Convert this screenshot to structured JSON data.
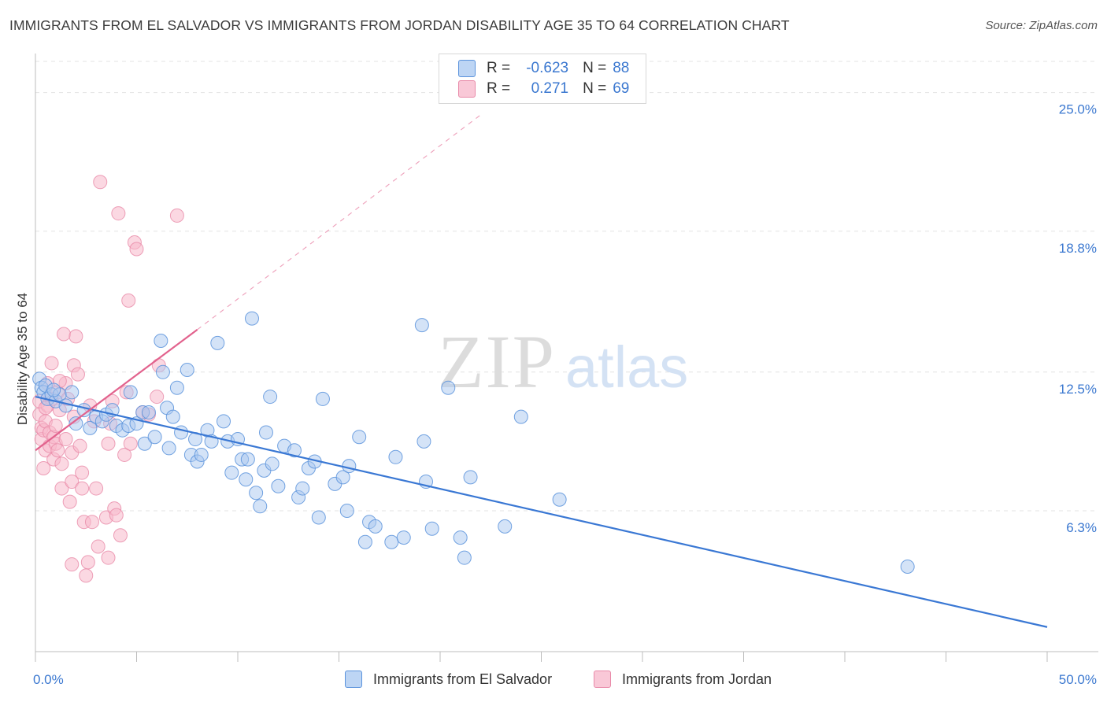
{
  "title": "IMMIGRANTS FROM EL SALVADOR VS IMMIGRANTS FROM JORDAN DISABILITY AGE 35 TO 64 CORRELATION CHART",
  "source": "Source: ZipAtlas.com",
  "watermark": {
    "zip": "ZIP",
    "atlas": "atlas"
  },
  "legend": {
    "row1": {
      "r_label": "R =",
      "r_value": "-0.623",
      "n_label": "N =",
      "n_value": "88"
    },
    "row2": {
      "r_label": "R =",
      "r_value": "0.271",
      "n_label": "N =",
      "n_value": "69"
    }
  },
  "colors": {
    "blue_fill": "#a9c8f0",
    "blue_stroke": "#5b93dc",
    "blue_line": "#3a78d4",
    "pink_fill": "#f7b8cb",
    "pink_stroke": "#e889a8",
    "pink_line": "#e2628d",
    "grid": "#e3e3e3",
    "tick_label": "#3b78d0"
  },
  "chart_data": {
    "type": "scatter",
    "title": "IMMIGRANTS FROM EL SALVADOR VS IMMIGRANTS FROM JORDAN DISABILITY AGE 35 TO 64 CORRELATION CHART",
    "xlabel": "",
    "ylabel": "Disability Age 35 to 64",
    "xlim": [
      0,
      50
    ],
    "ylim": [
      0,
      26.5
    ],
    "x_tick_labels": [
      "0.0%",
      "50.0%"
    ],
    "y_ticks": [
      6.3,
      12.5,
      18.8,
      25.0
    ],
    "y_tick_labels": [
      "6.3%",
      "12.5%",
      "18.8%",
      "25.0%"
    ],
    "grid": true,
    "legend_position": "top-center",
    "series": [
      {
        "name": "Immigrants from El Salvador",
        "r": -0.623,
        "n": 88,
        "trend": {
          "x": [
            0,
            50
          ],
          "y": [
            11.4,
            1.1
          ],
          "dashed_extension": false
        },
        "points": [
          [
            0.2,
            12.2
          ],
          [
            0.3,
            11.8
          ],
          [
            0.4,
            11.6
          ],
          [
            0.5,
            11.9
          ],
          [
            0.6,
            11.3
          ],
          [
            0.8,
            11.5
          ],
          [
            1.0,
            11.2
          ],
          [
            1.2,
            11.5
          ],
          [
            1.5,
            11.0
          ],
          [
            1.8,
            11.6
          ],
          [
            2.0,
            10.2
          ],
          [
            2.4,
            10.8
          ],
          [
            2.7,
            10.0
          ],
          [
            3.0,
            10.5
          ],
          [
            3.3,
            10.3
          ],
          [
            3.5,
            10.6
          ],
          [
            3.8,
            10.8
          ],
          [
            4.0,
            10.1
          ],
          [
            4.3,
            9.9
          ],
          [
            4.6,
            10.1
          ],
          [
            4.7,
            11.6
          ],
          [
            5.0,
            10.2
          ],
          [
            5.3,
            10.7
          ],
          [
            5.4,
            9.3
          ],
          [
            5.6,
            10.7
          ],
          [
            5.9,
            9.6
          ],
          [
            6.2,
            13.9
          ],
          [
            6.3,
            12.5
          ],
          [
            6.5,
            10.9
          ],
          [
            6.6,
            9.1
          ],
          [
            6.8,
            10.5
          ],
          [
            7.0,
            11.8
          ],
          [
            7.2,
            9.8
          ],
          [
            7.5,
            12.6
          ],
          [
            7.7,
            8.8
          ],
          [
            7.9,
            9.5
          ],
          [
            8.0,
            8.5
          ],
          [
            8.2,
            8.8
          ],
          [
            8.5,
            9.9
          ],
          [
            8.7,
            9.4
          ],
          [
            9.0,
            13.8
          ],
          [
            9.3,
            10.3
          ],
          [
            9.5,
            9.4
          ],
          [
            9.7,
            8.0
          ],
          [
            10.0,
            9.5
          ],
          [
            10.2,
            8.6
          ],
          [
            10.4,
            7.7
          ],
          [
            10.5,
            8.6
          ],
          [
            10.7,
            14.9
          ],
          [
            10.9,
            7.1
          ],
          [
            11.1,
            6.5
          ],
          [
            11.3,
            8.1
          ],
          [
            11.4,
            9.8
          ],
          [
            11.6,
            11.4
          ],
          [
            11.7,
            8.4
          ],
          [
            12.0,
            7.4
          ],
          [
            12.3,
            9.2
          ],
          [
            12.8,
            9.0
          ],
          [
            13.0,
            6.9
          ],
          [
            13.2,
            7.3
          ],
          [
            13.5,
            8.2
          ],
          [
            13.8,
            8.5
          ],
          [
            14.0,
            6.0
          ],
          [
            14.2,
            11.3
          ],
          [
            14.8,
            7.5
          ],
          [
            15.2,
            7.8
          ],
          [
            15.4,
            6.3
          ],
          [
            15.5,
            8.3
          ],
          [
            16.0,
            9.6
          ],
          [
            16.3,
            4.9
          ],
          [
            16.5,
            5.8
          ],
          [
            16.8,
            5.6
          ],
          [
            17.6,
            4.9
          ],
          [
            17.8,
            8.7
          ],
          [
            18.2,
            5.1
          ],
          [
            19.1,
            14.6
          ],
          [
            19.2,
            9.4
          ],
          [
            19.3,
            7.6
          ],
          [
            19.6,
            5.5
          ],
          [
            20.4,
            11.8
          ],
          [
            21.0,
            5.1
          ],
          [
            21.2,
            4.2
          ],
          [
            21.5,
            7.8
          ],
          [
            23.2,
            5.6
          ],
          [
            24.0,
            10.5
          ],
          [
            25.9,
            6.8
          ],
          [
            43.1,
            3.8
          ],
          [
            0.9,
            11.7
          ]
        ]
      },
      {
        "name": "Immigrants from Jordan",
        "r": 0.271,
        "n": 69,
        "trend": {
          "x": [
            0,
            8.0
          ],
          "y": [
            9.0,
            14.4
          ],
          "dashed_extension": true,
          "dashed_to": [
            22.0,
            24.0
          ]
        },
        "points": [
          [
            0.2,
            11.2
          ],
          [
            0.2,
            10.6
          ],
          [
            0.3,
            10.0
          ],
          [
            0.3,
            9.5
          ],
          [
            0.4,
            9.9
          ],
          [
            0.4,
            8.2
          ],
          [
            0.5,
            10.3
          ],
          [
            0.5,
            9.0
          ],
          [
            0.6,
            12.0
          ],
          [
            0.6,
            11.0
          ],
          [
            0.7,
            9.8
          ],
          [
            0.7,
            9.2
          ],
          [
            0.8,
            12.9
          ],
          [
            0.8,
            11.3
          ],
          [
            0.9,
            9.6
          ],
          [
            0.9,
            8.6
          ],
          [
            1.0,
            10.1
          ],
          [
            1.0,
            9.3
          ],
          [
            1.1,
            11.6
          ],
          [
            1.1,
            9.0
          ],
          [
            1.2,
            10.8
          ],
          [
            1.3,
            7.3
          ],
          [
            1.3,
            8.4
          ],
          [
            1.4,
            14.2
          ],
          [
            1.5,
            12.0
          ],
          [
            1.5,
            9.5
          ],
          [
            1.6,
            11.3
          ],
          [
            1.7,
            6.7
          ],
          [
            1.8,
            8.9
          ],
          [
            1.8,
            7.6
          ],
          [
            1.9,
            10.5
          ],
          [
            1.9,
            12.8
          ],
          [
            2.0,
            14.1
          ],
          [
            2.1,
            12.4
          ],
          [
            2.2,
            9.2
          ],
          [
            2.3,
            8.0
          ],
          [
            2.3,
            7.3
          ],
          [
            2.4,
            5.8
          ],
          [
            2.5,
            3.4
          ],
          [
            2.6,
            4.0
          ],
          [
            2.7,
            11.0
          ],
          [
            2.8,
            5.8
          ],
          [
            2.9,
            10.3
          ],
          [
            3.0,
            7.3
          ],
          [
            3.1,
            4.7
          ],
          [
            3.2,
            21.0
          ],
          [
            3.5,
            6.0
          ],
          [
            3.6,
            9.3
          ],
          [
            3.7,
            10.2
          ],
          [
            3.8,
            11.2
          ],
          [
            3.9,
            6.4
          ],
          [
            4.0,
            6.1
          ],
          [
            4.1,
            19.6
          ],
          [
            4.2,
            5.2
          ],
          [
            4.4,
            8.8
          ],
          [
            4.5,
            11.6
          ],
          [
            4.6,
            15.7
          ],
          [
            4.7,
            9.3
          ],
          [
            4.9,
            18.3
          ],
          [
            5.0,
            18.0
          ],
          [
            5.3,
            10.7
          ],
          [
            5.6,
            10.6
          ],
          [
            6.0,
            11.4
          ],
          [
            6.1,
            12.8
          ],
          [
            7.0,
            19.5
          ],
          [
            3.6,
            4.2
          ],
          [
            1.8,
            3.9
          ],
          [
            1.2,
            12.1
          ],
          [
            0.5,
            10.9
          ]
        ]
      }
    ]
  },
  "bottom_legend": [
    {
      "label": "Immigrants from El Salvador"
    },
    {
      "label": "Immigrants from Jordan"
    }
  ]
}
